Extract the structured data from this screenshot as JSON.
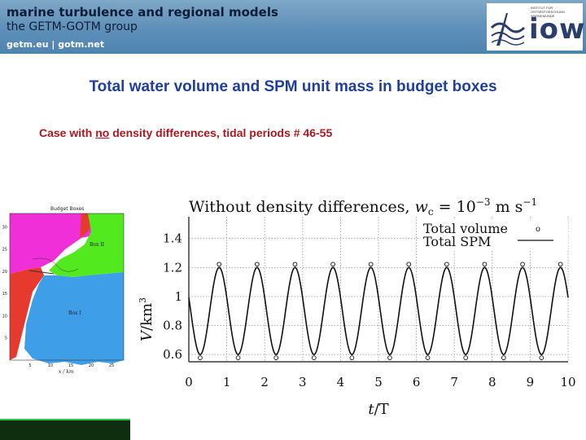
{
  "header": {
    "title": "marine turbulence and regional models",
    "subtitle": "the GETM-GOTM group",
    "links": "getm.eu | gotm.net"
  },
  "logo": {
    "text": "iow",
    "institution_lines": [
      "INSTITUT FÜR",
      "OSTSEEFORSCHUNG",
      "WARNEMÜNDE"
    ]
  },
  "slide": {
    "title": "Total water volume and SPM unit mass in budget boxes",
    "subtitle_pre": "Case with ",
    "subtitle_emph": "no",
    "subtitle_post": " density differences, tidal periods # 46-55"
  },
  "map": {
    "title": "Budget Boxes",
    "box1_label": "Box I",
    "box2_label": "Box II",
    "xlabel": "x / km",
    "xticks": [
      5,
      10,
      15,
      20,
      25
    ],
    "yticks": [
      5,
      10,
      15,
      20,
      25,
      30
    ],
    "colors": {
      "box1": "#3f9ee8",
      "box2": "#52ea1f",
      "outer": "#f02fd8",
      "land": "#e63a2f"
    }
  },
  "chart_data": {
    "type": "line",
    "title_main": "Without density differences, ",
    "title_var": "w",
    "title_sub": "c",
    "title_eq": " = 10",
    "title_exp": "−3",
    "title_unit": " m s",
    "title_unit_exp": "−1",
    "xlabel_var": "t",
    "xlabel_rest": "/T",
    "ylabel_var": "V",
    "ylabel_rest": "/km",
    "ylabel_exp": "3",
    "xlim": [
      0,
      10
    ],
    "ylim": [
      0.55,
      1.55
    ],
    "xticks": [
      0,
      1,
      2,
      3,
      4,
      5,
      6,
      7,
      8,
      9,
      10
    ],
    "yticks": [
      "0.6",
      "0.8",
      "1",
      "1.2",
      "1.4"
    ],
    "ytick_values": [
      0.6,
      0.8,
      1.0,
      1.2,
      1.4
    ],
    "grid": true,
    "legend_placement": "top-right",
    "series": [
      {
        "name": "Total volume",
        "kind": "markers",
        "period": 1,
        "mean": 0.9,
        "amplitude": 0.3,
        "phase_max": 0.8
      },
      {
        "name": "Total SPM",
        "kind": "line",
        "period": 1,
        "mean": 0.9,
        "amplitude": 0.3,
        "phase_max": 0.8
      }
    ]
  }
}
